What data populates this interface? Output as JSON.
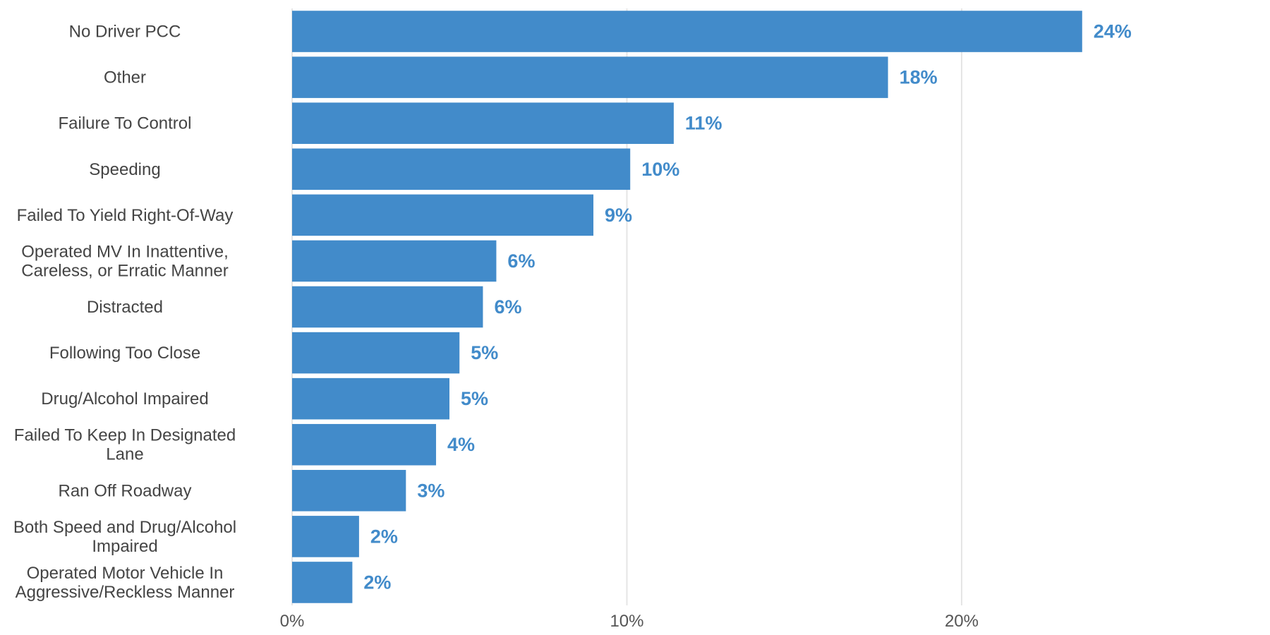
{
  "chart_data": {
    "type": "bar",
    "orientation": "horizontal",
    "categories": [
      "No Driver PCC",
      "Other",
      "Failure To Control",
      "Speeding",
      "Failed To Yield Right-Of-Way",
      "Operated MV In Inattentive, Careless, or Erratic Manner",
      "Distracted",
      "Following Too Close",
      "Drug/Alcohol Impaired",
      "Failed To Keep In Designated Lane",
      "Ran Off Roadway",
      "Both Speed and Drug/Alcohol Impaired",
      "Operated Motor Vehicle In Aggressive/Reckless Manner"
    ],
    "category_lines": [
      [
        "No Driver PCC"
      ],
      [
        "Other"
      ],
      [
        "Failure To Control"
      ],
      [
        "Speeding"
      ],
      [
        "Failed To Yield Right-Of-Way"
      ],
      [
        "Operated MV In Inattentive,",
        "Careless, or Erratic Manner"
      ],
      [
        "Distracted"
      ],
      [
        "Following Too Close"
      ],
      [
        "Drug/Alcohol Impaired"
      ],
      [
        "Failed To Keep In Designated",
        "Lane"
      ],
      [
        "Ran Off Roadway"
      ],
      [
        "Both Speed and Drug/Alcohol",
        "Impaired"
      ],
      [
        "Operated Motor Vehicle In",
        "Aggressive/Reckless Manner"
      ]
    ],
    "values": [
      23.6,
      17.8,
      11.4,
      10.1,
      9.0,
      6.1,
      5.7,
      5.0,
      4.7,
      4.3,
      3.4,
      2.0,
      1.8
    ],
    "value_labels": [
      "24%",
      "18%",
      "11%",
      "10%",
      "9%",
      "6%",
      "6%",
      "5%",
      "5%",
      "4%",
      "3%",
      "2%",
      "2%"
    ],
    "xticks": [
      0,
      10,
      20
    ],
    "xtick_labels": [
      "0%",
      "10%",
      "20%"
    ],
    "xlim": [
      0,
      29
    ],
    "title": "",
    "xlabel": "",
    "ylabel": "",
    "grid": "vertical",
    "legend": "none",
    "colors": {
      "bar": "#428bca",
      "value_label": "#428bca",
      "grid": "#e5e5e5"
    }
  }
}
